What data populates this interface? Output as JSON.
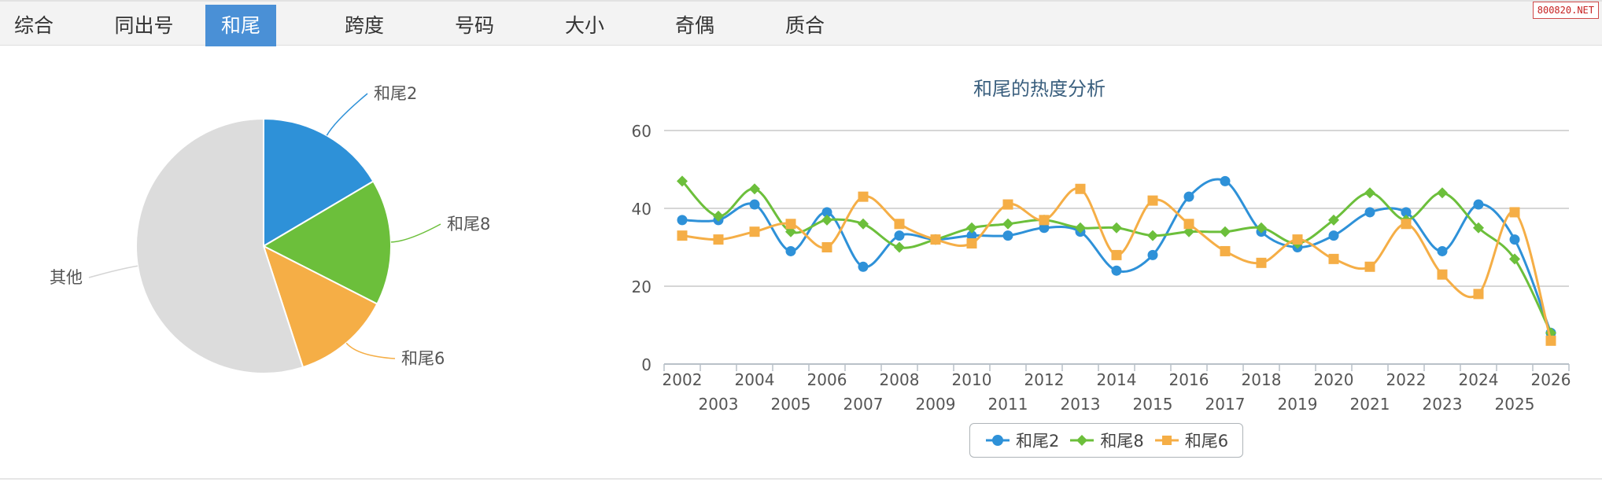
{
  "tabs": [
    {
      "label": "综合",
      "active": false
    },
    {
      "label": "同出号",
      "active": false
    },
    {
      "label": "和尾",
      "active": true
    },
    {
      "label": "跨度",
      "active": false
    },
    {
      "label": "号码",
      "active": false
    },
    {
      "label": "大小",
      "active": false
    },
    {
      "label": "奇偶",
      "active": false
    },
    {
      "label": "质合",
      "active": false
    }
  ],
  "watermark": "800820.NET",
  "colors": {
    "blue": "#2e91d8",
    "green": "#6cbf3b",
    "orange": "#f5ae46",
    "gray": "#dcdcdc",
    "title": "#3a5f7e"
  },
  "chart_data": [
    {
      "type": "pie",
      "slices": [
        {
          "label": "和尾2",
          "value": 16.5,
          "color": "#2e91d8"
        },
        {
          "label": "和尾8",
          "value": 16.0,
          "color": "#6cbf3b"
        },
        {
          "label": "和尾6",
          "value": 12.5,
          "color": "#f5ae46"
        },
        {
          "label": "其他",
          "value": 55.0,
          "color": "#dcdcdc"
        }
      ]
    },
    {
      "type": "line",
      "title": "和尾的热度分析",
      "x": [
        "2002",
        "2003",
        "2004",
        "2005",
        "2006",
        "2007",
        "2008",
        "2009",
        "2010",
        "2011",
        "2012",
        "2013",
        "2014",
        "2015",
        "2016",
        "2017",
        "2018",
        "2019",
        "2020",
        "2021",
        "2022",
        "2023",
        "2024",
        "2025",
        "2026"
      ],
      "ylim": [
        0,
        60
      ],
      "yticks": [
        0,
        20,
        40,
        60
      ],
      "grid": true,
      "legend": "bottom-center",
      "series": [
        {
          "name": "和尾2",
          "color": "#2e91d8",
          "marker": "circle",
          "values": [
            37,
            37,
            41,
            29,
            39,
            25,
            33,
            32,
            33,
            33,
            35,
            34,
            24,
            28,
            43,
            47,
            34,
            30,
            33,
            39,
            39,
            29,
            41,
            32,
            8
          ]
        },
        {
          "name": "和尾8",
          "color": "#6cbf3b",
          "marker": "diamond",
          "values": [
            47,
            38,
            45,
            34,
            37,
            36,
            30,
            32,
            35,
            36,
            37,
            35,
            35,
            33,
            34,
            34,
            35,
            31,
            37,
            44,
            37,
            44,
            35,
            27,
            8
          ]
        },
        {
          "name": "和尾6",
          "color": "#f5ae46",
          "marker": "square",
          "values": [
            33,
            32,
            34,
            36,
            30,
            43,
            36,
            32,
            31,
            41,
            37,
            45,
            28,
            42,
            36,
            29,
            26,
            32,
            27,
            25,
            36,
            23,
            18,
            39,
            6
          ]
        }
      ]
    }
  ]
}
